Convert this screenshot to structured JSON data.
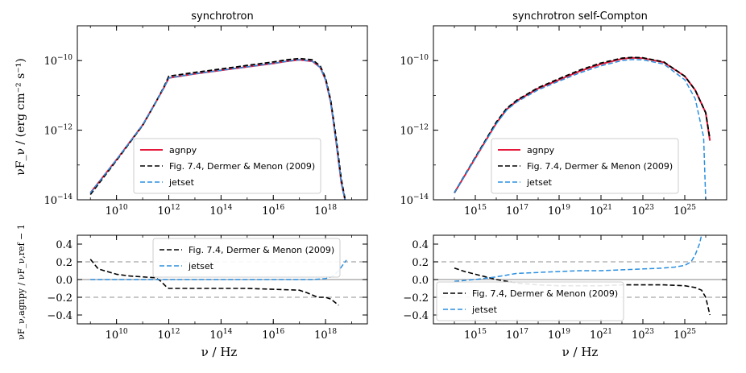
{
  "figure": {
    "ylabel_top": "νF_ν / (erg cm⁻² s⁻¹)",
    "ylabel_bottom": "νF_ν,agnpy / νF_ν,ref − 1",
    "xlabel": "ν / Hz"
  },
  "chart_data": [
    {
      "id": "sync-sed",
      "type": "line",
      "title": "synchrotron",
      "xlabel": "",
      "ylabel": "νF_ν / (erg cm⁻² s⁻¹)",
      "xscale": "log",
      "yscale": "log",
      "xlim_log": [
        8.5,
        19.6
      ],
      "ylim_log": [
        -14,
        -9
      ],
      "xticks": [
        {
          "v": 10,
          "label": "10^10"
        },
        {
          "v": 12,
          "label": "10^12"
        },
        {
          "v": 14,
          "label": "10^14"
        },
        {
          "v": 16,
          "label": "10^16"
        },
        {
          "v": 18,
          "label": "10^18"
        }
      ],
      "yticks": [
        {
          "v": -14,
          "label": "10^-14"
        },
        {
          "v": -12,
          "label": "10^-12"
        },
        {
          "v": -10,
          "label": "10^-10"
        }
      ],
      "legend": {
        "position": "lower-center",
        "entries": [
          {
            "label": "agnpy",
            "color": "#e5173a",
            "dash": "solid"
          },
          {
            "label": "Fig. 7.4, Dermer & Menon (2009)",
            "color": "#000000",
            "dash": "dashed"
          },
          {
            "label": "jetset",
            "color": "#2a8fe0",
            "dash": "dashed"
          }
        ]
      },
      "series": [
        {
          "name": "agnpy",
          "color": "#e5173a",
          "dash": "solid",
          "width": 2,
          "x": [
            9.0,
            10.0,
            11.0,
            11.5,
            11.8,
            12.0,
            13.0,
            14.0,
            15.0,
            16.0,
            16.5,
            17.0,
            17.5,
            17.8,
            18.0,
            18.2,
            18.4,
            18.6,
            18.8
          ],
          "y": [
            -13.8,
            -12.85,
            -11.85,
            -11.2,
            -10.8,
            -10.5,
            -10.38,
            -10.28,
            -10.18,
            -10.08,
            -10.02,
            -9.98,
            -10.02,
            -10.2,
            -10.55,
            -11.2,
            -12.3,
            -13.5,
            -14.2
          ]
        },
        {
          "name": "Fig. 7.4, Dermer & Menon (2009)",
          "color": "#000000",
          "dash": "dashed",
          "width": 1.8,
          "x": [
            9.0,
            10.0,
            11.0,
            11.5,
            11.8,
            12.0,
            13.0,
            14.0,
            15.0,
            16.0,
            16.5,
            17.0,
            17.5,
            17.8,
            18.0,
            18.2,
            18.4,
            18.6,
            18.8
          ],
          "y": [
            -13.85,
            -12.87,
            -11.86,
            -11.2,
            -10.78,
            -10.45,
            -10.34,
            -10.24,
            -10.14,
            -10.04,
            -9.98,
            -9.94,
            -9.98,
            -10.16,
            -10.5,
            -11.15,
            -12.2,
            -13.4,
            -14.2
          ]
        },
        {
          "name": "jetset",
          "color": "#2a8fe0",
          "dash": "dashed",
          "width": 1.5,
          "x": [
            9.0,
            10.0,
            11.0,
            11.5,
            11.8,
            12.0,
            13.0,
            14.0,
            15.0,
            16.0,
            16.5,
            17.0,
            17.5,
            17.8,
            18.0,
            18.2,
            18.4,
            18.6,
            18.8
          ],
          "y": [
            -13.8,
            -12.85,
            -11.85,
            -11.2,
            -10.8,
            -10.5,
            -10.38,
            -10.28,
            -10.18,
            -10.08,
            -10.02,
            -9.98,
            -10.02,
            -10.2,
            -10.55,
            -11.2,
            -12.3,
            -13.5,
            -14.2
          ]
        }
      ]
    },
    {
      "id": "ssc-sed",
      "type": "line",
      "title": "synchrotron self-Compton",
      "xlabel": "",
      "ylabel": "",
      "xscale": "log",
      "yscale": "log",
      "xlim_log": [
        13.0,
        27.0
      ],
      "ylim_log": [
        -14,
        -9
      ],
      "xticks": [
        {
          "v": 15,
          "label": "10^15"
        },
        {
          "v": 17,
          "label": "10^17"
        },
        {
          "v": 19,
          "label": "10^19"
        },
        {
          "v": 21,
          "label": "10^21"
        },
        {
          "v": 23,
          "label": "10^23"
        },
        {
          "v": 25,
          "label": "10^25"
        }
      ],
      "yticks": [
        {
          "v": -14,
          "label": "10^-14"
        },
        {
          "v": -12,
          "label": "10^-12"
        },
        {
          "v": -10,
          "label": "10^-10"
        }
      ],
      "legend": {
        "position": "lower-center",
        "entries": [
          {
            "label": "agnpy",
            "color": "#e5173a",
            "dash": "solid"
          },
          {
            "label": "Fig. 7.4, Dermer & Menon (2009)",
            "color": "#000000",
            "dash": "dashed"
          },
          {
            "label": "jetset",
            "color": "#2a8fe0",
            "dash": "dashed"
          }
        ]
      },
      "series": [
        {
          "name": "agnpy",
          "color": "#e5173a",
          "dash": "solid",
          "width": 2,
          "x": [
            14.0,
            15.0,
            16.0,
            16.5,
            17.0,
            18.0,
            19.0,
            20.0,
            21.0,
            22.0,
            22.5,
            23.0,
            24.0,
            25.0,
            25.5,
            26.0,
            26.2
          ],
          "y": [
            -13.8,
            -12.8,
            -11.8,
            -11.4,
            -11.15,
            -10.8,
            -10.55,
            -10.3,
            -10.1,
            -9.95,
            -9.92,
            -9.93,
            -10.05,
            -10.45,
            -10.85,
            -11.5,
            -12.3
          ]
        },
        {
          "name": "Fig. 7.4, Dermer & Menon (2009)",
          "color": "#000000",
          "dash": "dashed",
          "width": 1.8,
          "x": [
            14.0,
            15.0,
            16.0,
            16.5,
            17.0,
            18.0,
            19.0,
            20.0,
            21.0,
            22.0,
            22.5,
            23.0,
            24.0,
            25.0,
            25.5,
            26.0,
            26.2
          ],
          "y": [
            -13.8,
            -12.78,
            -11.77,
            -11.37,
            -11.13,
            -10.78,
            -10.52,
            -10.27,
            -10.07,
            -9.93,
            -9.91,
            -9.92,
            -10.04,
            -10.45,
            -10.85,
            -11.5,
            -12.25
          ]
        },
        {
          "name": "jetset",
          "color": "#2a8fe0",
          "dash": "dashed",
          "width": 1.5,
          "x": [
            14.0,
            15.0,
            16.0,
            16.5,
            17.0,
            18.0,
            19.0,
            20.0,
            21.0,
            22.0,
            22.5,
            23.0,
            24.0,
            25.0,
            25.5,
            25.9,
            26.0
          ],
          "y": [
            -13.8,
            -12.8,
            -11.82,
            -11.42,
            -11.18,
            -10.84,
            -10.59,
            -10.35,
            -10.15,
            -10.0,
            -9.97,
            -9.98,
            -10.1,
            -10.55,
            -11.1,
            -12.2,
            -14.0
          ]
        }
      ]
    },
    {
      "id": "sync-resid",
      "type": "line",
      "title": "",
      "xlabel": "ν / Hz",
      "ylabel": "νF_ν,agnpy / νF_ν,ref − 1",
      "xscale": "log",
      "yscale": "linear",
      "xlim_log": [
        8.5,
        19.6
      ],
      "ylim": [
        -0.5,
        0.5
      ],
      "xticks": [
        {
          "v": 10,
          "label": "10^10"
        },
        {
          "v": 12,
          "label": "10^12"
        },
        {
          "v": 14,
          "label": "10^14"
        },
        {
          "v": 16,
          "label": "10^16"
        },
        {
          "v": 18,
          "label": "10^18"
        }
      ],
      "yticks": [
        {
          "v": -0.4,
          "label": "−0.4"
        },
        {
          "v": -0.2,
          "label": "−0.2"
        },
        {
          "v": 0.0,
          "label": "0.0"
        },
        {
          "v": 0.2,
          "label": "0.2"
        },
        {
          "v": 0.4,
          "label": "0.4"
        }
      ],
      "hlines": [
        {
          "y": 0.0,
          "color": "#9e9e9e",
          "dash": "solid"
        },
        {
          "y": 0.2,
          "color": "#a8a8a8",
          "dash": "dashed"
        },
        {
          "y": -0.2,
          "color": "#a8a8a8",
          "dash": "dashed"
        }
      ],
      "legend": {
        "position": "upper-center",
        "entries": [
          {
            "label": "Fig. 7.4, Dermer & Menon (2009)",
            "color": "#000000",
            "dash": "dashed"
          },
          {
            "label": "jetset",
            "color": "#2a8fe0",
            "dash": "dashed"
          }
        ]
      },
      "series": [
        {
          "name": "Fig. 7.4, Dermer & Menon (2009)",
          "color": "#000000",
          "dash": "dashed",
          "width": 1.6,
          "x": [
            9.0,
            9.3,
            10.0,
            10.5,
            11.0,
            11.5,
            11.7,
            11.9,
            12.0,
            13.0,
            14.0,
            15.0,
            16.0,
            17.0,
            17.3,
            17.7,
            18.0,
            18.2,
            18.5
          ],
          "y": [
            0.23,
            0.12,
            0.06,
            0.04,
            0.03,
            0.02,
            -0.02,
            -0.08,
            -0.1,
            -0.1,
            -0.1,
            -0.1,
            -0.11,
            -0.12,
            -0.15,
            -0.2,
            -0.2,
            -0.22,
            -0.29
          ]
        },
        {
          "name": "jetset",
          "color": "#2a8fe0",
          "dash": "dashed",
          "width": 1.5,
          "x": [
            9.0,
            10.0,
            12.0,
            14.0,
            16.0,
            17.5,
            18.0,
            18.3,
            18.5,
            18.7,
            18.8
          ],
          "y": [
            0.0,
            0.0,
            0.0,
            0.0,
            0.0,
            0.0,
            0.01,
            0.04,
            0.1,
            0.18,
            0.22
          ]
        }
      ]
    },
    {
      "id": "ssc-resid",
      "type": "line",
      "title": "",
      "xlabel": "ν / Hz",
      "ylabel": "",
      "xscale": "log",
      "yscale": "linear",
      "xlim_log": [
        13.0,
        27.0
      ],
      "ylim": [
        -0.5,
        0.5
      ],
      "xticks": [
        {
          "v": 15,
          "label": "10^15"
        },
        {
          "v": 17,
          "label": "10^17"
        },
        {
          "v": 19,
          "label": "10^19"
        },
        {
          "v": 21,
          "label": "10^21"
        },
        {
          "v": 23,
          "label": "10^23"
        },
        {
          "v": 25,
          "label": "10^25"
        }
      ],
      "yticks": [
        {
          "v": -0.4,
          "label": "−0.4"
        },
        {
          "v": -0.2,
          "label": "−0.2"
        },
        {
          "v": 0.0,
          "label": "0.0"
        },
        {
          "v": 0.2,
          "label": "0.2"
        },
        {
          "v": 0.4,
          "label": "0.4"
        }
      ],
      "hlines": [
        {
          "y": 0.0,
          "color": "#9e9e9e",
          "dash": "solid"
        },
        {
          "y": 0.2,
          "color": "#a8a8a8",
          "dash": "dashed"
        },
        {
          "y": -0.2,
          "color": "#a8a8a8",
          "dash": "dashed"
        }
      ],
      "legend": {
        "position": "lower-left",
        "entries": [
          {
            "label": "Fig. 7.4, Dermer & Menon (2009)",
            "color": "#000000",
            "dash": "dashed"
          },
          {
            "label": "jetset",
            "color": "#2a8fe0",
            "dash": "dashed"
          }
        ]
      },
      "series": [
        {
          "name": "Fig. 7.4, Dermer & Menon (2009)",
          "color": "#000000",
          "dash": "dashed",
          "width": 1.6,
          "x": [
            14.0,
            14.5,
            15.0,
            15.5,
            16.0,
            16.5,
            17.0,
            18.0,
            19.0,
            20.0,
            21.0,
            22.0,
            23.0,
            24.0,
            25.0,
            25.5,
            25.8,
            26.0,
            26.2
          ],
          "y": [
            0.13,
            0.09,
            0.06,
            0.03,
            0.0,
            -0.02,
            -0.04,
            -0.06,
            -0.07,
            -0.07,
            -0.07,
            -0.06,
            -0.06,
            -0.06,
            -0.07,
            -0.09,
            -0.12,
            -0.2,
            -0.4
          ]
        },
        {
          "name": "jetset",
          "color": "#2a8fe0",
          "dash": "dashed",
          "width": 1.5,
          "x": [
            14.0,
            15.0,
            16.0,
            16.5,
            17.0,
            18.0,
            19.0,
            20.0,
            21.0,
            22.0,
            23.0,
            24.0,
            24.5,
            25.0,
            25.3,
            25.5,
            25.7,
            25.8
          ],
          "y": [
            -0.02,
            0.0,
            0.03,
            0.05,
            0.07,
            0.08,
            0.09,
            0.1,
            0.1,
            0.11,
            0.12,
            0.13,
            0.14,
            0.16,
            0.2,
            0.28,
            0.4,
            0.5
          ]
        }
      ]
    }
  ]
}
